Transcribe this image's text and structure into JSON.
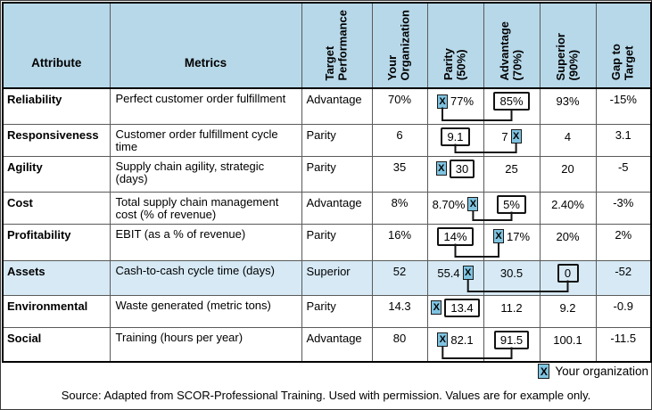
{
  "table": {
    "columns": [
      "Attribute",
      "Metrics",
      "Target\nPerformance",
      "Your\nOrganization",
      "Parity\n(50%)",
      "Advantage\n(70%)",
      "Superior\n(90%)",
      "Gap to\nTarget"
    ],
    "rows": [
      {
        "attribute": "Reliability",
        "metric": "Perfect customer order fulfillment",
        "target": "Advantage",
        "your_org": "70%",
        "parity": "77%",
        "advantage": "85%",
        "superior": "93%",
        "gap": "-15%",
        "target_col": "advantage",
        "marker_col": "parity",
        "marker_pos": "before",
        "highlight": false
      },
      {
        "attribute": "Responsiveness",
        "metric": "Customer order fulfillment cycle time",
        "target": "Parity",
        "your_org": "6",
        "parity": "9.1",
        "advantage": "7",
        "superior": "4",
        "gap": "3.1",
        "target_col": "parity",
        "marker_col": "advantage",
        "marker_pos": "after",
        "highlight": false
      },
      {
        "attribute": "Agility",
        "metric": "Supply chain agility, strategic (days)",
        "target": "Parity",
        "your_org": "35",
        "parity": "30",
        "advantage": "25",
        "superior": "20",
        "gap": "-5",
        "target_col": "parity",
        "marker_col": "parity",
        "marker_pos": "before",
        "highlight": false
      },
      {
        "attribute": "Cost",
        "metric": "Total supply chain management cost (% of revenue)",
        "target": "Advantage",
        "your_org": "8%",
        "parity": "8.70%",
        "advantage": "5%",
        "superior": "2.40%",
        "gap": "-3%",
        "target_col": "advantage",
        "marker_col": "parity",
        "marker_pos": "after",
        "highlight": false
      },
      {
        "attribute": "Profitability",
        "metric": "EBIT (as a % of revenue)",
        "target": "Parity",
        "your_org": "16%",
        "parity": "14%",
        "advantage": "17%",
        "superior": "20%",
        "gap": "2%",
        "target_col": "parity",
        "marker_col": "advantage",
        "marker_pos": "before",
        "highlight": false
      },
      {
        "attribute": "Assets",
        "metric": "Cash-to-cash cycle time (days)",
        "target": "Superior",
        "your_org": "52",
        "parity": "55.4",
        "advantage": "30.5",
        "superior": "0",
        "gap": "-52",
        "target_col": "superior",
        "marker_col": "parity",
        "marker_pos": "after",
        "highlight": true
      },
      {
        "attribute": "Environmental",
        "metric": "Waste generated (metric tons)",
        "target": "Parity",
        "your_org": "14.3",
        "parity": "13.4",
        "advantage": "11.2",
        "superior": "9.2",
        "gap": "-0.9",
        "target_col": "parity",
        "marker_col": "parity",
        "marker_pos": "before",
        "highlight": false
      },
      {
        "attribute": "Social",
        "metric": "Training (hours per year)",
        "target": "Advantage",
        "your_org": "80",
        "parity": "82.1",
        "advantage": "91.5",
        "superior": "100.1",
        "gap": "-11.5",
        "target_col": "advantage",
        "marker_col": "parity",
        "marker_pos": "before",
        "highlight": false
      }
    ]
  },
  "legend": {
    "marker": "X",
    "label": "Your organization"
  },
  "footer": {
    "source": "Source: Adapted from SCOR-Professional Training. Used with permission. Values are for example only."
  },
  "colors": {
    "header_bg": "#b7d8e9",
    "highlight_row_bg": "#d6e9f5",
    "marker_bg": "#7fc3e0",
    "border_dark": "#000000",
    "border_inner": "#5a5a5a"
  }
}
